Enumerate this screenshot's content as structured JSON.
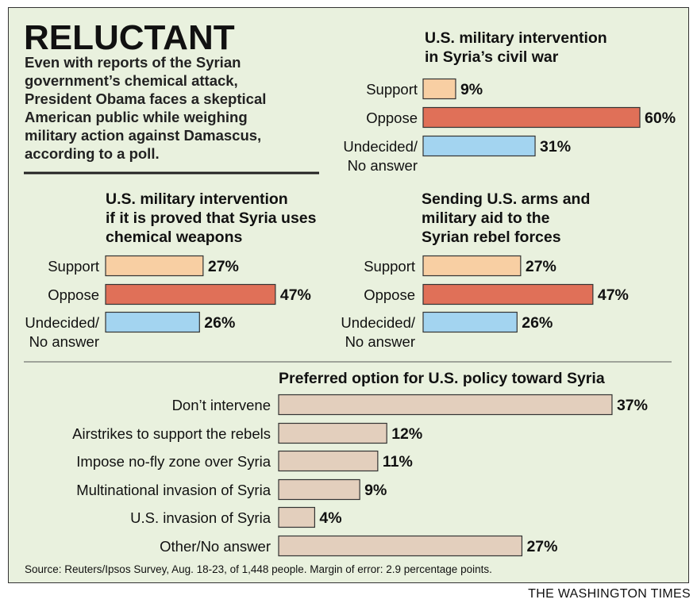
{
  "headline": "RELUCTANT",
  "intro_lines": [
    "Even with reports of the Syrian",
    "government’s chemical attack,",
    "President Obama faces a skeptical",
    "American public while weighing",
    "military action against Damascus,",
    "according to a poll."
  ],
  "source": "Source: Reuters/Ipsos Survey, Aug. 18-23, of 1,448 people. Margin of error: 2.9 percentage points.",
  "credit": "THE WASHINGTON TIMES",
  "colors": {
    "background": "#e9f1de",
    "support": "#f8cfa3",
    "oppose": "#e07058",
    "undecided": "#a3d4f0",
    "option": "#e3cfbd",
    "outline": "#333333"
  },
  "chart_data": [
    {
      "type": "bar",
      "orientation": "horizontal",
      "title_lines": [
        "U.S. military intervention",
        "in Syria’s civil war"
      ],
      "categories": [
        [
          "Support"
        ],
        [
          "Oppose"
        ],
        [
          "Undecided/",
          "No answer"
        ]
      ],
      "values": [
        9,
        60,
        31
      ],
      "value_labels": [
        "9%",
        "60%",
        "31%"
      ],
      "unit": "%"
    },
    {
      "type": "bar",
      "orientation": "horizontal",
      "title_lines": [
        "U.S. military intervention",
        "if it is proved that Syria uses",
        "chemical weapons"
      ],
      "categories": [
        [
          "Support"
        ],
        [
          "Oppose"
        ],
        [
          "Undecided/",
          "No answer"
        ]
      ],
      "values": [
        27,
        47,
        26
      ],
      "value_labels": [
        "27%",
        "47%",
        "26%"
      ],
      "unit": "%"
    },
    {
      "type": "bar",
      "orientation": "horizontal",
      "title_lines": [
        "Sending U.S. arms and",
        "military aid to the",
        "Syrian rebel forces"
      ],
      "categories": [
        [
          "Support"
        ],
        [
          "Oppose"
        ],
        [
          "Undecided/",
          "No answer"
        ]
      ],
      "values": [
        27,
        47,
        26
      ],
      "value_labels": [
        "27%",
        "47%",
        "26%"
      ],
      "unit": "%"
    },
    {
      "type": "bar",
      "orientation": "horizontal",
      "title_lines": [
        "Preferred option for U.S. policy toward Syria"
      ],
      "categories": [
        [
          "Don’t intervene"
        ],
        [
          "Airstrikes to support the rebels"
        ],
        [
          "Impose no-fly zone over Syria"
        ],
        [
          "Multinational invasion of Syria"
        ],
        [
          "U.S. invasion of Syria"
        ],
        [
          "Other/No answer"
        ]
      ],
      "values": [
        37,
        12,
        11,
        9,
        4,
        27
      ],
      "value_labels": [
        "37%",
        "12%",
        "11%",
        "9%",
        "4%",
        "27%"
      ],
      "unit": "%"
    }
  ]
}
